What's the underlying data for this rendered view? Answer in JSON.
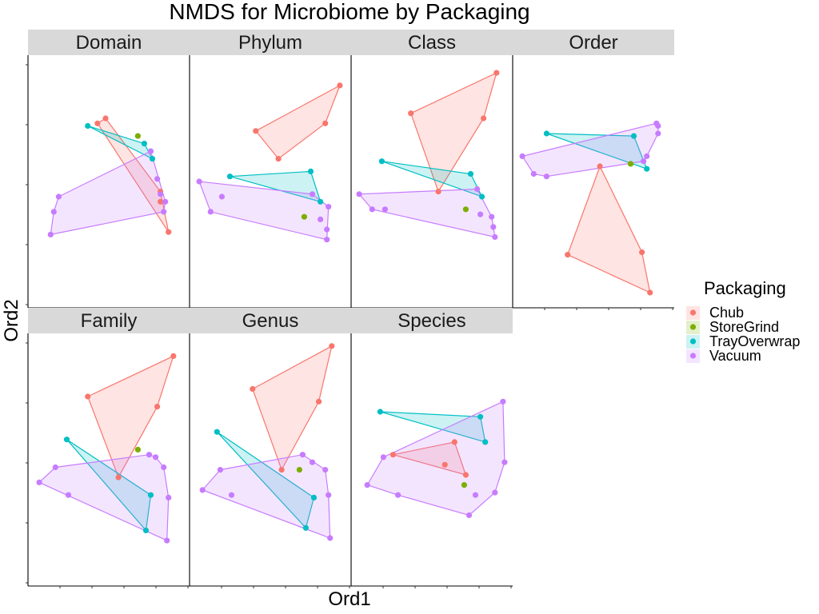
{
  "chart_data": {
    "type": "scatter",
    "title": "NMDS for Microbiome by Packaging",
    "xlabel": "Ord1",
    "ylabel": "Ord2",
    "grid": false,
    "legend": {
      "title": "Packaging",
      "placement": "right",
      "entries": [
        {
          "name": "Chub",
          "color": "#F8766D"
        },
        {
          "name": "StoreGrind",
          "color": "#7CAE00"
        },
        {
          "name": "TrayOverwrap",
          "color": "#00BFC4"
        },
        {
          "name": "Vacuum",
          "color": "#C77CFF"
        }
      ]
    },
    "panels": [
      {
        "name": "Domain",
        "series": [
          {
            "name": "Chub",
            "points": [
              [
                0.43,
                0.73
              ],
              [
                0.48,
                0.75
              ],
              [
                0.82,
                0.46
              ],
              [
                0.87,
                0.3
              ],
              [
                0.82,
                0.42
              ]
            ]
          },
          {
            "name": "StoreGrind",
            "points": [
              [
                0.68,
                0.68
              ]
            ]
          },
          {
            "name": "TrayOverwrap",
            "points": [
              [
                0.37,
                0.72
              ],
              [
                0.72,
                0.65
              ],
              [
                0.77,
                0.59
              ]
            ]
          },
          {
            "name": "Vacuum",
            "points": [
              [
                0.19,
                0.44
              ],
              [
                0.16,
                0.38
              ],
              [
                0.14,
                0.29
              ],
              [
                0.8,
                0.51
              ],
              [
                0.82,
                0.45
              ],
              [
                0.84,
                0.38
              ],
              [
                0.85,
                0.42
              ],
              [
                0.76,
                0.62
              ]
            ]
          }
        ]
      },
      {
        "name": "Phylum",
        "series": [
          {
            "name": "Chub",
            "points": [
              [
                0.41,
                0.7
              ],
              [
                0.55,
                0.59
              ],
              [
                0.84,
                0.73
              ],
              [
                0.93,
                0.88
              ]
            ]
          },
          {
            "name": "StoreGrind",
            "points": [
              [
                0.71,
                0.36
              ]
            ]
          },
          {
            "name": "TrayOverwrap",
            "points": [
              [
                0.25,
                0.52
              ],
              [
                0.75,
                0.54
              ],
              [
                0.81,
                0.42
              ]
            ]
          },
          {
            "name": "Vacuum",
            "points": [
              [
                0.06,
                0.5
              ],
              [
                0.2,
                0.44
              ],
              [
                0.13,
                0.38
              ],
              [
                0.76,
                0.45
              ],
              [
                0.86,
                0.4
              ],
              [
                0.81,
                0.35
              ],
              [
                0.85,
                0.31
              ],
              [
                0.85,
                0.27
              ]
            ]
          }
        ]
      },
      {
        "name": "Class",
        "series": [
          {
            "name": "Chub",
            "points": [
              [
                0.37,
                0.77
              ],
              [
                0.54,
                0.46
              ],
              [
                0.82,
                0.75
              ],
              [
                0.9,
                0.93
              ]
            ]
          },
          {
            "name": "StoreGrind",
            "points": [
              [
                0.71,
                0.39
              ]
            ]
          },
          {
            "name": "TrayOverwrap",
            "points": [
              [
                0.19,
                0.58
              ],
              [
                0.74,
                0.53
              ],
              [
                0.81,
                0.44
              ]
            ]
          },
          {
            "name": "Vacuum",
            "points": [
              [
                0.05,
                0.45
              ],
              [
                0.13,
                0.39
              ],
              [
                0.21,
                0.39
              ],
              [
                0.78,
                0.47
              ],
              [
                0.8,
                0.37
              ],
              [
                0.87,
                0.36
              ],
              [
                0.88,
                0.32
              ],
              [
                0.89,
                0.28
              ]
            ]
          }
        ]
      },
      {
        "name": "Order",
        "series": [
          {
            "name": "Chub",
            "points": [
              [
                0.54,
                0.56
              ],
              [
                0.34,
                0.21
              ],
              [
                0.8,
                0.22
              ],
              [
                0.85,
                0.06
              ]
            ]
          },
          {
            "name": "StoreGrind",
            "points": [
              [
                0.73,
                0.57
              ]
            ]
          },
          {
            "name": "TrayOverwrap",
            "points": [
              [
                0.21,
                0.69
              ],
              [
                0.75,
                0.68
              ],
              [
                0.83,
                0.55
              ]
            ]
          },
          {
            "name": "Vacuum",
            "points": [
              [
                0.06,
                0.6
              ],
              [
                0.13,
                0.53
              ],
              [
                0.21,
                0.52
              ],
              [
                0.81,
                0.58
              ],
              [
                0.83,
                0.6
              ],
              [
                0.9,
                0.69
              ],
              [
                0.9,
                0.72
              ],
              [
                0.89,
                0.73
              ]
            ]
          }
        ]
      },
      {
        "name": "Family",
        "series": [
          {
            "name": "Chub",
            "points": [
              [
                0.37,
                0.75
              ],
              [
                0.56,
                0.43
              ],
              [
                0.8,
                0.71
              ],
              [
                0.9,
                0.91
              ]
            ]
          },
          {
            "name": "StoreGrind",
            "points": [
              [
                0.68,
                0.54
              ]
            ]
          },
          {
            "name": "TrayOverwrap",
            "points": [
              [
                0.24,
                0.58
              ],
              [
                0.76,
                0.36
              ],
              [
                0.73,
                0.22
              ]
            ]
          },
          {
            "name": "Vacuum",
            "points": [
              [
                0.07,
                0.41
              ],
              [
                0.17,
                0.47
              ],
              [
                0.25,
                0.36
              ],
              [
                0.79,
                0.51
              ],
              [
                0.84,
                0.47
              ],
              [
                0.87,
                0.35
              ],
              [
                0.86,
                0.18
              ],
              [
                0.75,
                0.52
              ]
            ]
          }
        ]
      },
      {
        "name": "Genus",
        "series": [
          {
            "name": "Chub",
            "points": [
              [
                0.39,
                0.78
              ],
              [
                0.57,
                0.46
              ],
              [
                0.8,
                0.73
              ],
              [
                0.88,
                0.95
              ]
            ]
          },
          {
            "name": "StoreGrind",
            "points": [
              [
                0.68,
                0.46
              ]
            ]
          },
          {
            "name": "TrayOverwrap",
            "points": [
              [
                0.17,
                0.61
              ],
              [
                0.77,
                0.35
              ],
              [
                0.72,
                0.23
              ]
            ]
          },
          {
            "name": "Vacuum",
            "points": [
              [
                0.08,
                0.38
              ],
              [
                0.19,
                0.46
              ],
              [
                0.26,
                0.36
              ],
              [
                0.7,
                0.52
              ],
              [
                0.76,
                0.49
              ],
              [
                0.84,
                0.46
              ],
              [
                0.86,
                0.36
              ],
              [
                0.87,
                0.19
              ]
            ]
          }
        ]
      },
      {
        "name": "Species",
        "series": [
          {
            "name": "Chub",
            "points": [
              [
                0.26,
                0.52
              ],
              [
                0.58,
                0.48
              ],
              [
                0.64,
                0.57
              ],
              [
                0.71,
                0.44
              ]
            ]
          },
          {
            "name": "StoreGrind",
            "points": [
              [
                0.7,
                0.4
              ]
            ]
          },
          {
            "name": "TrayOverwrap",
            "points": [
              [
                0.18,
                0.69
              ],
              [
                0.8,
                0.67
              ],
              [
                0.83,
                0.57
              ]
            ]
          },
          {
            "name": "Vacuum",
            "points": [
              [
                0.2,
                0.51
              ],
              [
                0.1,
                0.4
              ],
              [
                0.29,
                0.36
              ],
              [
                0.77,
                0.36
              ],
              [
                0.89,
                0.37
              ],
              [
                0.95,
                0.49
              ],
              [
                0.94,
                0.73
              ],
              [
                0.73,
                0.28
              ]
            ]
          }
        ]
      }
    ]
  }
}
